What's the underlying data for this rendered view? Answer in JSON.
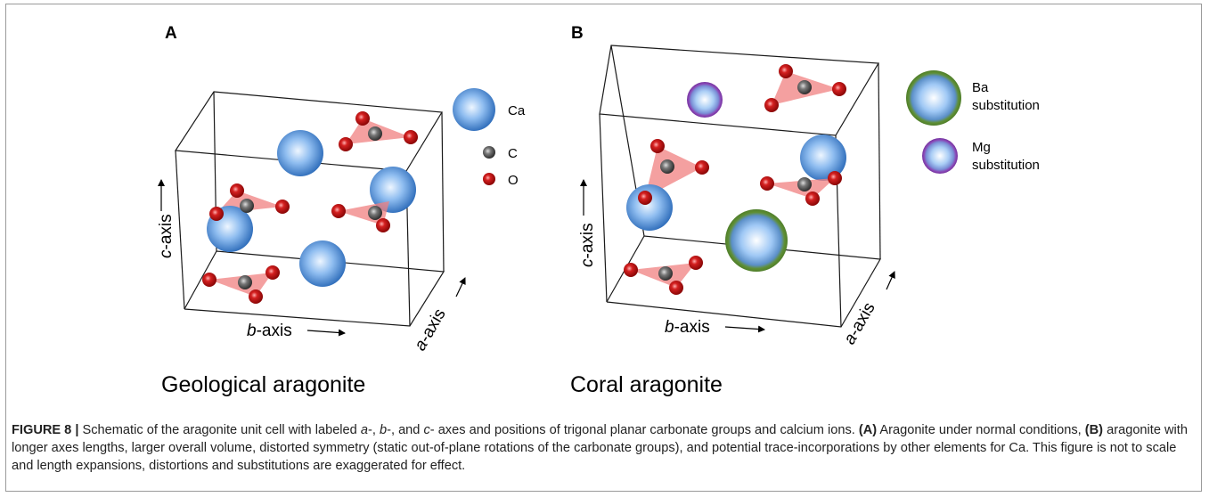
{
  "panels": {
    "a": {
      "letter": "A",
      "title": "Geological aragonite",
      "legend": {
        "ca": "Ca",
        "c": "C",
        "o": "O"
      },
      "axes": {
        "b": "b-axis",
        "c": "c-axis",
        "a": "a-axis"
      }
    },
    "b": {
      "letter": "B",
      "title": "Coral aragonite",
      "legend": {
        "ba_1": "Ba",
        "ba_2": "substitution",
        "mg_1": "Mg",
        "mg_2": "substitution"
      },
      "axes": {
        "b": "b-axis",
        "c": "c-axis",
        "a": "a-axis"
      }
    }
  },
  "caption": {
    "label": "FIGURE 8 |",
    "t1": "Schematic of the aragonite unit cell with labeled",
    "i1": "a",
    "t2": "-,",
    "i2": "b",
    "t3": "-, and",
    "i3": "c",
    "t4": "- axes and positions of trigonal planar carbonate groups and calcium ions.",
    "b1": "(A)",
    "t5": "Aragonite under normal conditions,",
    "b2": "(B)",
    "t6": "aragonite with longer axes lengths, larger overall volume, distorted symmetry (static out-of-plane rotations of the carbonate groups), and potential trace-incorporations by other elements for Ca. This figure is not to scale and length expansions, distortions and substitutions are exaggerated for effect."
  },
  "colors": {
    "ca_light": "#e8f2ff",
    "ca_dark": "#2f77c6",
    "ba_ring": "#5a8a2e",
    "mg_ring": "#7d3fb0",
    "oxygen": "#c21818",
    "carbon": "#5a5a5a",
    "triangle": "#f08080"
  }
}
